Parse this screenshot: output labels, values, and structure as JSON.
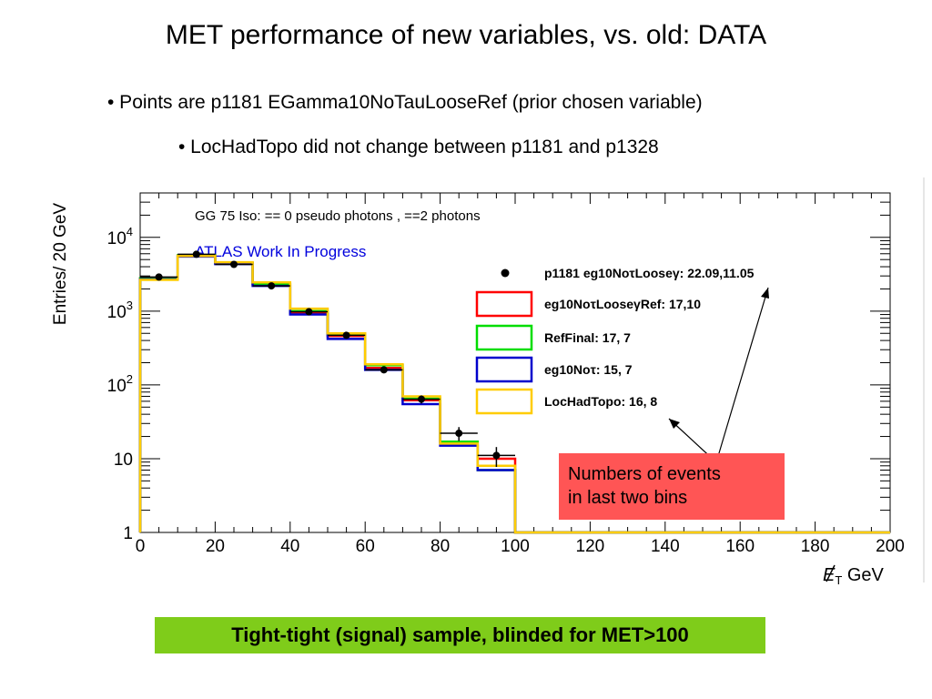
{
  "slide": {
    "title": "MET performance of new variables, vs. old: DATA",
    "bullets": [
      "• Points are p1181 EGamma10NoTauLooseRef (prior chosen variable)",
      "• LocHadTopo did not change between p1181 and p1328"
    ],
    "callout": {
      "line1": "Numbers of events",
      "line2": "in last two bins",
      "color": "#ff5555"
    },
    "footer": {
      "text": "Tight-tight (signal) sample, blinded for MET>100",
      "color": "#7fcc1a"
    }
  },
  "chart_data": {
    "type": "histogram",
    "title": "",
    "xlabel": "E_T GeV",
    "xlabel_parts": {
      "main": "E",
      "sub": "T",
      "unit": "GeV"
    },
    "ylabel": "Entries/ 20 GeV",
    "xlim": [
      0,
      200
    ],
    "ylim": [
      1,
      40000
    ],
    "yscale": "log",
    "xticks": [
      "0",
      "20",
      "40",
      "60",
      "80",
      "100",
      "120",
      "140",
      "160",
      "180",
      "200"
    ],
    "yticks": [
      {
        "value": 1,
        "label": "1"
      },
      {
        "value": 10,
        "label": "10"
      },
      {
        "value": 100,
        "label": "10",
        "exp": "2"
      },
      {
        "value": 1000,
        "label": "10",
        "exp": "3"
      },
      {
        "value": 10000,
        "label": "10",
        "exp": "4"
      }
    ],
    "annotations": {
      "selection": "GG 75 Iso: == 0 pseudo photons , ==2 photons",
      "atlas": "ATLAS Work In Progress"
    },
    "bin_edges": [
      0,
      10,
      20,
      30,
      40,
      50,
      60,
      70,
      80,
      90,
      100,
      110,
      120,
      130,
      140,
      150,
      160,
      170,
      180,
      190,
      200
    ],
    "series": [
      {
        "name": "eg10NoτLooseγRef: 17,10",
        "color": "#ff0000",
        "values": [
          2800,
          5700,
          4500,
          2300,
          950,
          460,
          170,
          62,
          17,
          10,
          1,
          1,
          1,
          1,
          1,
          1,
          1,
          1,
          1,
          1
        ]
      },
      {
        "name": "RefFinal: 17, 7",
        "color": "#00dd00",
        "values": [
          2800,
          5700,
          4500,
          2350,
          1000,
          480,
          185,
          65,
          17,
          7,
          1,
          1,
          1,
          1,
          1,
          1,
          1,
          1,
          1,
          1
        ]
      },
      {
        "name": "eg10Noτ: 15, 7",
        "color": "#0000cc",
        "values": [
          2700,
          5500,
          4350,
          2200,
          900,
          420,
          160,
          55,
          15,
          7,
          1,
          1,
          1,
          1,
          1,
          1,
          1,
          1,
          1,
          1
        ]
      },
      {
        "name": "LocHadTopo: 16, 8",
        "color": "#ffcc00",
        "values": [
          2650,
          5600,
          4600,
          2450,
          1080,
          500,
          190,
          70,
          16,
          8,
          1,
          1,
          1,
          1,
          1,
          1,
          1,
          1,
          1,
          1
        ]
      }
    ],
    "points": {
      "name": "p1181 eg10NoτLooseγ: 22.09,11.05",
      "color": "#000000",
      "x": [
        5,
        15,
        25,
        35,
        45,
        55,
        65,
        75,
        85,
        95
      ],
      "y": [
        2900,
        5900,
        4300,
        2200,
        980,
        470,
        160,
        64,
        22.09,
        11.05
      ]
    },
    "legend": {
      "position": "right",
      "entries": [
        {
          "text": "p1181 eg10NoτLooseγ: 22.09,11.05",
          "marker": "point",
          "color": "#000000"
        },
        {
          "text": "eg10NoτLooseγRef: 17,10",
          "marker": "box",
          "color": "#ff0000"
        },
        {
          "text": "RefFinal: 17, 7",
          "marker": "box",
          "color": "#00dd00"
        },
        {
          "text": "eg10Noτ: 15, 7",
          "marker": "box",
          "color": "#0000cc"
        },
        {
          "text": "LocHadTopo: 16, 8",
          "marker": "box",
          "color": "#ffcc00"
        }
      ]
    },
    "grid": false
  }
}
